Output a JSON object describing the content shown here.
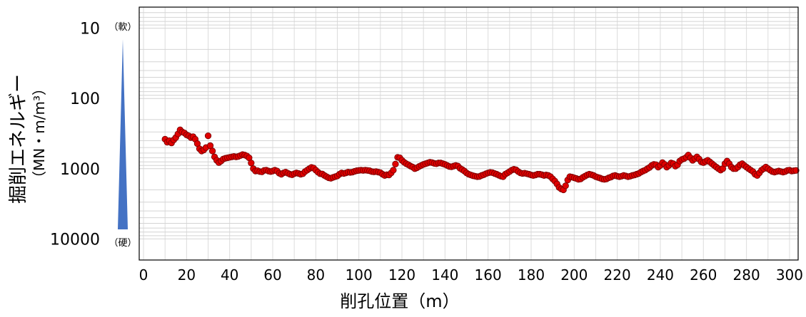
{
  "chart_data": {
    "type": "scatter",
    "xlabel": "削孔位置（m）",
    "ylabel": "掘削エネルギー",
    "ylabel_unit": "（MN・m/m³）",
    "y_scale": "log",
    "y_inverted": true,
    "xlim": [
      -2,
      304
    ],
    "ylim": [
      5,
      20000
    ],
    "x_ticks": [
      "0",
      "20",
      "40",
      "60",
      "80",
      "100",
      "120",
      "140",
      "160",
      "180",
      "200",
      "220",
      "240",
      "260",
      "280",
      "300"
    ],
    "y_ticks": [
      {
        "value": 10,
        "label": "10"
      },
      {
        "value": 100,
        "label": "100"
      },
      {
        "value": 1000,
        "label": "1000"
      },
      {
        "value": 10000,
        "label": "10000"
      }
    ],
    "grid": true,
    "soft_label": "（軟）",
    "hard_label": "（硬）",
    "marker_color": "#e00000",
    "marker_edge": "#7a0000",
    "wedge_color": "#4472c4",
    "series_points": [
      [
        10,
        380
      ],
      [
        11,
        420
      ],
      [
        12,
        400
      ],
      [
        13,
        430
      ],
      [
        14,
        390
      ],
      [
        15,
        360
      ],
      [
        16,
        320
      ],
      [
        17,
        280
      ],
      [
        18,
        300
      ],
      [
        19,
        310
      ],
      [
        20,
        330
      ],
      [
        21,
        340
      ],
      [
        22,
        360
      ],
      [
        23,
        350
      ],
      [
        24,
        380
      ],
      [
        25,
        440
      ],
      [
        26,
        520
      ],
      [
        27,
        560
      ],
      [
        28,
        540
      ],
      [
        29,
        500
      ],
      [
        30,
        340
      ],
      [
        31,
        470
      ],
      [
        32,
        560
      ],
      [
        33,
        680
      ],
      [
        34,
        760
      ],
      [
        35,
        820
      ],
      [
        36,
        780
      ],
      [
        37,
        730
      ],
      [
        38,
        710
      ],
      [
        39,
        700
      ],
      [
        40,
        690
      ],
      [
        41,
        680
      ],
      [
        42,
        670
      ],
      [
        43,
        680
      ],
      [
        44,
        670
      ],
      [
        45,
        650
      ],
      [
        46,
        630
      ],
      [
        47,
        640
      ],
      [
        48,
        660
      ],
      [
        49,
        700
      ],
      [
        50,
        830
      ],
      [
        51,
        1000
      ],
      [
        52,
        1080
      ],
      [
        53,
        1070
      ],
      [
        54,
        1100
      ],
      [
        55,
        1110
      ],
      [
        56,
        1060
      ],
      [
        57,
        1050
      ],
      [
        58,
        1080
      ],
      [
        59,
        1100
      ],
      [
        60,
        1080
      ],
      [
        61,
        1050
      ],
      [
        62,
        1080
      ],
      [
        63,
        1160
      ],
      [
        64,
        1200
      ],
      [
        65,
        1150
      ],
      [
        66,
        1120
      ],
      [
        67,
        1160
      ],
      [
        68,
        1200
      ],
      [
        69,
        1220
      ],
      [
        70,
        1180
      ],
      [
        71,
        1150
      ],
      [
        72,
        1170
      ],
      [
        73,
        1200
      ],
      [
        74,
        1180
      ],
      [
        75,
        1100
      ],
      [
        76,
        1050
      ],
      [
        77,
        1000
      ],
      [
        78,
        960
      ],
      [
        79,
        980
      ],
      [
        80,
        1050
      ],
      [
        81,
        1120
      ],
      [
        82,
        1180
      ],
      [
        83,
        1190
      ],
      [
        84,
        1250
      ],
      [
        85,
        1300
      ],
      [
        86,
        1350
      ],
      [
        87,
        1370
      ],
      [
        88,
        1330
      ],
      [
        89,
        1300
      ],
      [
        90,
        1270
      ],
      [
        91,
        1200
      ],
      [
        92,
        1150
      ],
      [
        93,
        1170
      ],
      [
        94,
        1150
      ],
      [
        95,
        1120
      ],
      [
        96,
        1130
      ],
      [
        97,
        1120
      ],
      [
        98,
        1090
      ],
      [
        99,
        1070
      ],
      [
        100,
        1060
      ],
      [
        101,
        1050
      ],
      [
        102,
        1060
      ],
      [
        103,
        1050
      ],
      [
        104,
        1060
      ],
      [
        105,
        1070
      ],
      [
        106,
        1100
      ],
      [
        107,
        1110
      ],
      [
        108,
        1100
      ],
      [
        109,
        1120
      ],
      [
        110,
        1140
      ],
      [
        111,
        1200
      ],
      [
        112,
        1250
      ],
      [
        113,
        1220
      ],
      [
        114,
        1230
      ],
      [
        115,
        1150
      ],
      [
        116,
        1050
      ],
      [
        117,
        860
      ],
      [
        118,
        690
      ],
      [
        119,
        700
      ],
      [
        120,
        760
      ],
      [
        121,
        810
      ],
      [
        122,
        850
      ],
      [
        123,
        880
      ],
      [
        124,
        920
      ],
      [
        125,
        950
      ],
      [
        126,
        1000
      ],
      [
        127,
        970
      ],
      [
        128,
        930
      ],
      [
        129,
        900
      ],
      [
        130,
        870
      ],
      [
        131,
        850
      ],
      [
        132,
        830
      ],
      [
        133,
        810
      ],
      [
        134,
        820
      ],
      [
        135,
        840
      ],
      [
        136,
        850
      ],
      [
        137,
        830
      ],
      [
        138,
        830
      ],
      [
        139,
        850
      ],
      [
        140,
        870
      ],
      [
        141,
        900
      ],
      [
        142,
        930
      ],
      [
        143,
        940
      ],
      [
        144,
        920
      ],
      [
        145,
        900
      ],
      [
        146,
        920
      ],
      [
        147,
        990
      ],
      [
        148,
        1030
      ],
      [
        149,
        1080
      ],
      [
        150,
        1150
      ],
      [
        151,
        1200
      ],
      [
        152,
        1230
      ],
      [
        153,
        1260
      ],
      [
        154,
        1280
      ],
      [
        155,
        1300
      ],
      [
        156,
        1290
      ],
      [
        157,
        1250
      ],
      [
        158,
        1220
      ],
      [
        159,
        1180
      ],
      [
        160,
        1150
      ],
      [
        161,
        1130
      ],
      [
        162,
        1140
      ],
      [
        163,
        1170
      ],
      [
        164,
        1200
      ],
      [
        165,
        1240
      ],
      [
        166,
        1280
      ],
      [
        167,
        1300
      ],
      [
        168,
        1200
      ],
      [
        169,
        1150
      ],
      [
        170,
        1100
      ],
      [
        171,
        1050
      ],
      [
        172,
        1020
      ],
      [
        173,
        1040
      ],
      [
        174,
        1100
      ],
      [
        175,
        1150
      ],
      [
        176,
        1170
      ],
      [
        177,
        1160
      ],
      [
        178,
        1180
      ],
      [
        179,
        1200
      ],
      [
        180,
        1230
      ],
      [
        181,
        1250
      ],
      [
        182,
        1230
      ],
      [
        183,
        1200
      ],
      [
        184,
        1200
      ],
      [
        185,
        1220
      ],
      [
        186,
        1250
      ],
      [
        187,
        1230
      ],
      [
        188,
        1250
      ],
      [
        189,
        1300
      ],
      [
        190,
        1400
      ],
      [
        191,
        1500
      ],
      [
        192,
        1650
      ],
      [
        193,
        1850
      ],
      [
        194,
        1950
      ],
      [
        195,
        2000
      ],
      [
        196,
        1750
      ],
      [
        197,
        1450
      ],
      [
        198,
        1300
      ],
      [
        199,
        1320
      ],
      [
        200,
        1350
      ],
      [
        201,
        1380
      ],
      [
        202,
        1420
      ],
      [
        203,
        1400
      ],
      [
        204,
        1330
      ],
      [
        205,
        1280
      ],
      [
        206,
        1230
      ],
      [
        207,
        1200
      ],
      [
        208,
        1220
      ],
      [
        209,
        1250
      ],
      [
        210,
        1300
      ],
      [
        211,
        1330
      ],
      [
        212,
        1360
      ],
      [
        213,
        1400
      ],
      [
        214,
        1420
      ],
      [
        215,
        1400
      ],
      [
        216,
        1350
      ],
      [
        217,
        1320
      ],
      [
        218,
        1270
      ],
      [
        219,
        1250
      ],
      [
        220,
        1280
      ],
      [
        221,
        1300
      ],
      [
        222,
        1280
      ],
      [
        223,
        1250
      ],
      [
        224,
        1270
      ],
      [
        225,
        1300
      ],
      [
        226,
        1280
      ],
      [
        227,
        1250
      ],
      [
        228,
        1230
      ],
      [
        229,
        1200
      ],
      [
        230,
        1170
      ],
      [
        231,
        1120
      ],
      [
        232,
        1080
      ],
      [
        233,
        1050
      ],
      [
        234,
        1000
      ],
      [
        235,
        960
      ],
      [
        236,
        900
      ],
      [
        237,
        870
      ],
      [
        238,
        880
      ],
      [
        239,
        950
      ],
      [
        240,
        900
      ],
      [
        241,
        820
      ],
      [
        242,
        870
      ],
      [
        243,
        950
      ],
      [
        244,
        900
      ],
      [
        245,
        830
      ],
      [
        246,
        850
      ],
      [
        247,
        920
      ],
      [
        248,
        880
      ],
      [
        249,
        780
      ],
      [
        250,
        740
      ],
      [
        251,
        720
      ],
      [
        252,
        690
      ],
      [
        253,
        640
      ],
      [
        254,
        700
      ],
      [
        255,
        760
      ],
      [
        256,
        720
      ],
      [
        257,
        680
      ],
      [
        258,
        730
      ],
      [
        259,
        800
      ],
      [
        260,
        820
      ],
      [
        261,
        790
      ],
      [
        262,
        760
      ],
      [
        263,
        800
      ],
      [
        264,
        850
      ],
      [
        265,
        900
      ],
      [
        266,
        950
      ],
      [
        267,
        1000
      ],
      [
        268,
        1050
      ],
      [
        269,
        1000
      ],
      [
        270,
        850
      ],
      [
        271,
        780
      ],
      [
        272,
        850
      ],
      [
        273,
        950
      ],
      [
        274,
        1000
      ],
      [
        275,
        1000
      ],
      [
        276,
        950
      ],
      [
        277,
        880
      ],
      [
        278,
        850
      ],
      [
        279,
        900
      ],
      [
        280,
        950
      ],
      [
        281,
        1000
      ],
      [
        282,
        1050
      ],
      [
        283,
        1100
      ],
      [
        284,
        1200
      ],
      [
        285,
        1250
      ],
      [
        286,
        1150
      ],
      [
        287,
        1050
      ],
      [
        288,
        1000
      ],
      [
        289,
        950
      ],
      [
        290,
        1000
      ],
      [
        291,
        1050
      ],
      [
        292,
        1100
      ],
      [
        293,
        1120
      ],
      [
        294,
        1100
      ],
      [
        295,
        1080
      ],
      [
        296,
        1100
      ],
      [
        297,
        1120
      ],
      [
        298,
        1100
      ],
      [
        299,
        1060
      ],
      [
        300,
        1050
      ],
      [
        301,
        1080
      ],
      [
        302,
        1070
      ],
      [
        303,
        1060
      ]
    ]
  }
}
